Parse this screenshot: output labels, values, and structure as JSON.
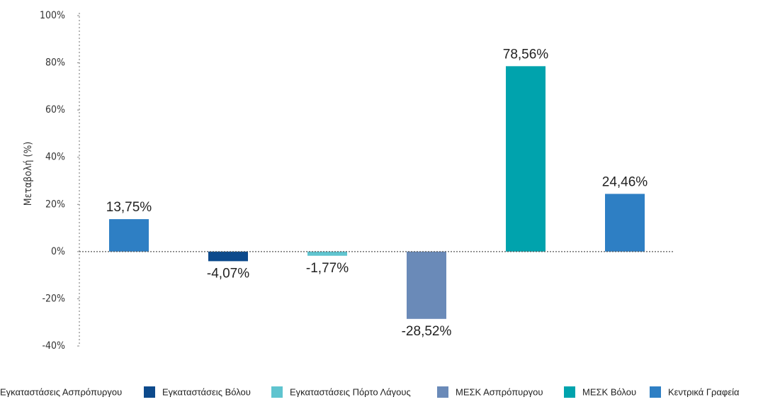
{
  "chart_data": {
    "type": "bar",
    "y_label": "Μεταβολή (%)",
    "ylim": [
      -40,
      100
    ],
    "yticks": [
      {
        "value": -40,
        "label": "-40%"
      },
      {
        "value": -20,
        "label": "-20%"
      },
      {
        "value": 0,
        "label": "0%"
      },
      {
        "value": 20,
        "label": "20%"
      },
      {
        "value": 40,
        "label": "40%"
      },
      {
        "value": 60,
        "label": "60%"
      },
      {
        "value": 80,
        "label": "80%"
      },
      {
        "value": 100,
        "label": "100%"
      }
    ],
    "legend": "bottom",
    "series": [
      {
        "name": "Εγκαταστάσεις Ασπρόπυργου",
        "color": "#2e7fc4",
        "values": [
          13.75
        ],
        "value_labels": [
          "13,75%"
        ]
      },
      {
        "name": "Εγκαταστάσεις Βόλου",
        "color": "#0d4a8c",
        "values": [
          -4.07
        ],
        "value_labels": [
          "-4,07%"
        ]
      },
      {
        "name": "Εγκαταστάσεις Πόρτο Λάγους",
        "color": "#5fc4cf",
        "values": [
          -1.77
        ],
        "value_labels": [
          "-1,77%"
        ]
      },
      {
        "name": "ΜΕΣΚ Ασπρόπυργου",
        "color": "#6a8ab8",
        "values": [
          -28.52
        ],
        "value_labels": [
          "-28,52%"
        ]
      },
      {
        "name": "ΜΕΣΚ Βόλου",
        "color": "#00a3ad",
        "values": [
          78.56
        ],
        "value_labels": [
          "78,56%"
        ]
      },
      {
        "name": "Κεντρικά Γραφεία",
        "color": "#2e7fc4",
        "values": [
          24.46
        ],
        "value_labels": [
          "24,46%"
        ]
      }
    ]
  }
}
